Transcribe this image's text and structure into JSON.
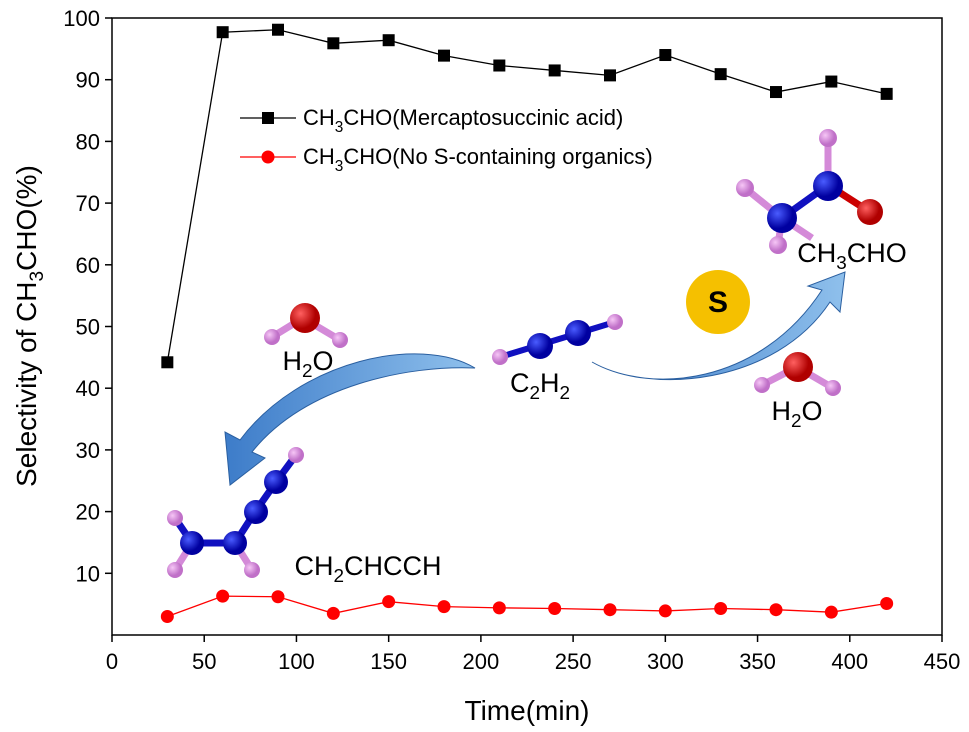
{
  "chart_data": {
    "type": "line",
    "ylabel": [
      "Selectivity of CH",
      "3",
      "CHO(%)"
    ],
    "xlabel": "Time(min)",
    "x": [
      30,
      60,
      90,
      120,
      150,
      180,
      210,
      240,
      270,
      300,
      330,
      360,
      390,
      420
    ],
    "series": [
      {
        "name": "CH3CHO(Mercaptosuccinic acid)",
        "color": "#000000",
        "marker": "square",
        "values": [
          44.2,
          97.7,
          98.1,
          95.9,
          96.4,
          93.9,
          92.3,
          91.5,
          90.7,
          94.0,
          90.9,
          88.0,
          89.7,
          87.7
        ]
      },
      {
        "name": "CH3CHO(No S-containing organics)",
        "color": "#ff0000",
        "marker": "circle",
        "values": [
          3.0,
          6.3,
          6.2,
          3.5,
          5.4,
          4.6,
          4.4,
          4.3,
          4.1,
          3.9,
          4.3,
          4.1,
          3.7,
          5.1
        ]
      }
    ],
    "xlim": [
      0,
      450
    ],
    "xticks": [
      0,
      50,
      100,
      150,
      200,
      250,
      300,
      350,
      400,
      450
    ],
    "ylim": [
      0,
      100
    ],
    "yticks": [
      10,
      20,
      30,
      40,
      50,
      60,
      70,
      80,
      90,
      100
    ],
    "annotations": [
      "H2O",
      "C2H2",
      "CH3CHO",
      "CH2CHCCH",
      "H2O",
      "S"
    ]
  }
}
